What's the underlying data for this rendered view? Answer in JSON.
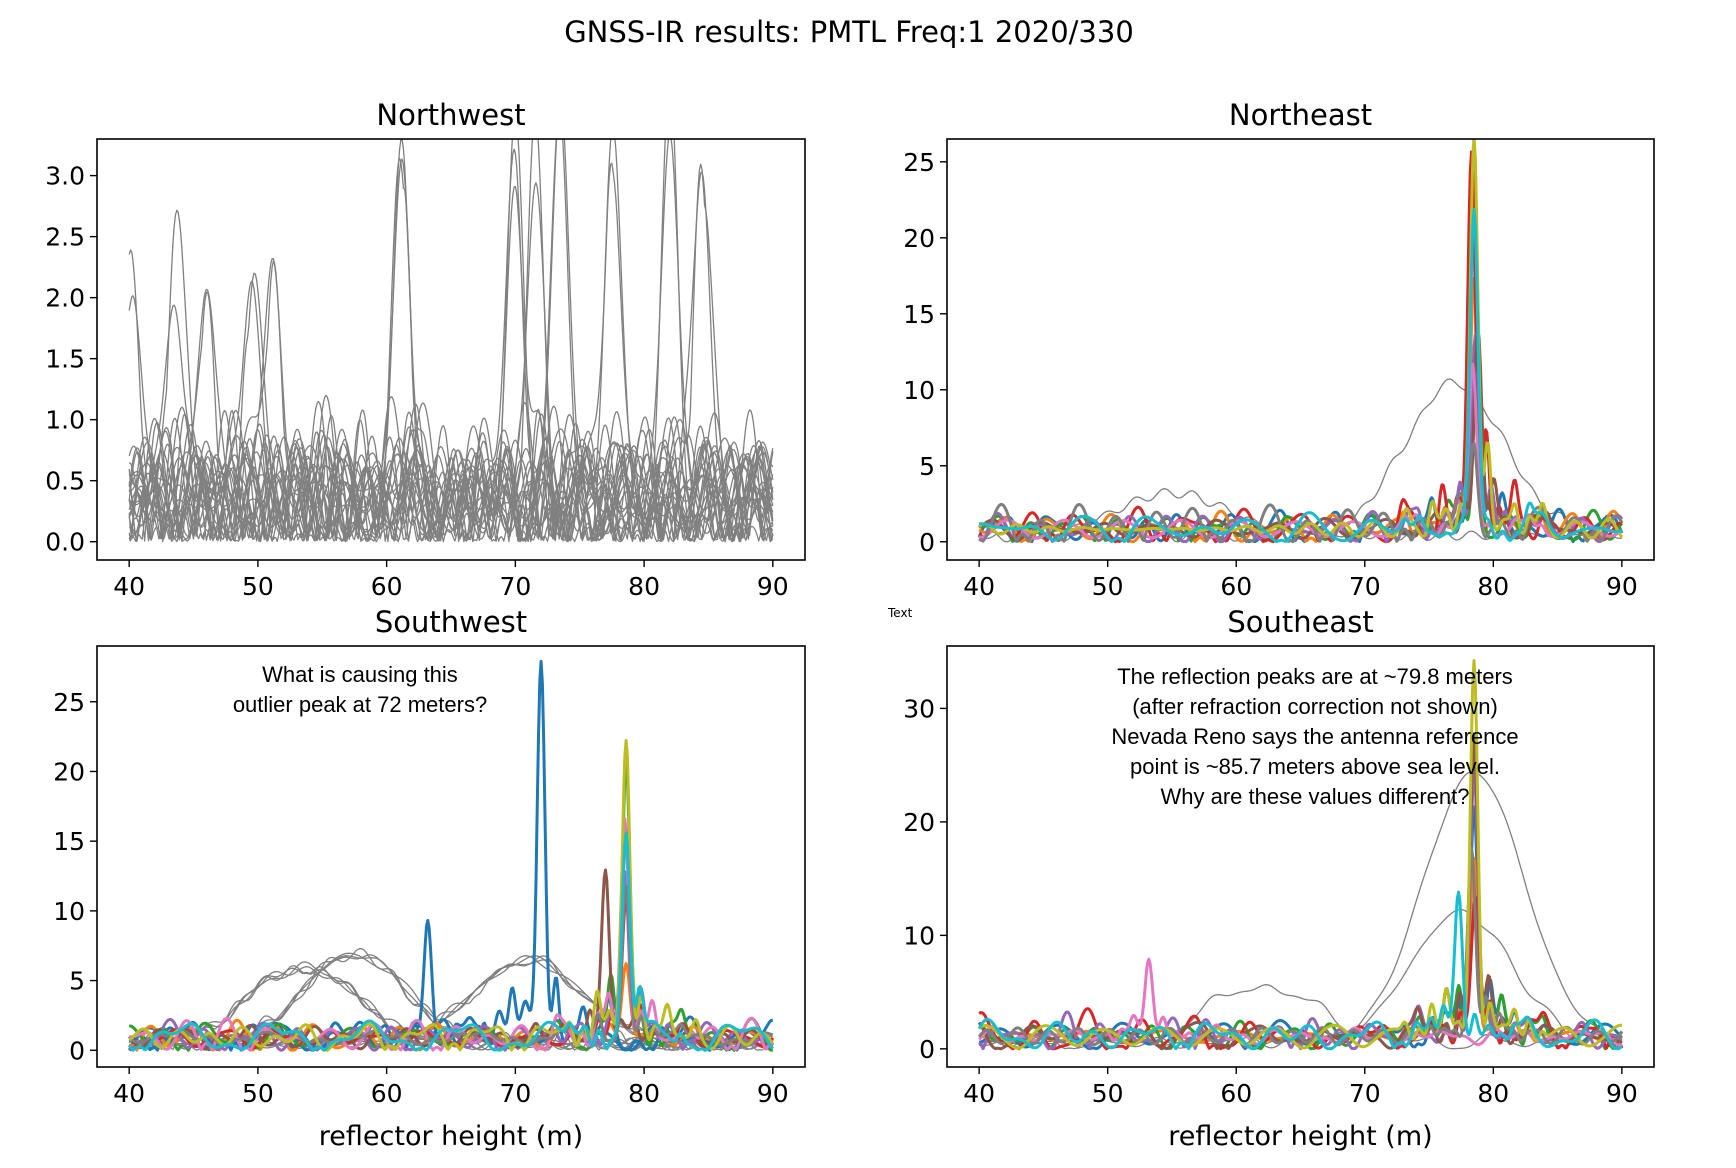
{
  "figure": {
    "title": "GNSS-IR results: PMTL Freq:1 2020/330",
    "stray_text": "Text"
  },
  "colors": {
    "gray": "#808080",
    "cycle": [
      "#1f77b4",
      "#ff7f0e",
      "#2ca02c",
      "#d62728",
      "#9467bd",
      "#8c564b",
      "#e377c2",
      "#7f7f7f",
      "#bcbd22",
      "#17becf"
    ]
  },
  "chart_data": [
    {
      "type": "line",
      "title": "Northwest",
      "xlabel": "",
      "ylabel": "",
      "xlim": [
        37.5,
        92.5
      ],
      "ylim": [
        -0.15,
        3.3
      ],
      "xticks": [
        40,
        50,
        60,
        70,
        80,
        90
      ],
      "yticks": [
        0.0,
        0.5,
        1.0,
        1.5,
        2.0,
        2.5,
        3.0
      ],
      "ytick_labels": [
        "0.0",
        "0.5",
        "1.0",
        "1.5",
        "2.0",
        "2.5",
        "3.0"
      ],
      "annotations": [],
      "gray_traces": {
        "count": 26,
        "peaks": [
          {
            "x": 61.2,
            "y": 2.92
          },
          {
            "x": 70.0,
            "y": 2.75
          },
          {
            "x": 73.5,
            "y": 3.15
          },
          {
            "x": 77.5,
            "y": 3.05
          },
          {
            "x": 82.0,
            "y": 3.05
          },
          {
            "x": 84.5,
            "y": 2.87
          },
          {
            "x": 71.5,
            "y": 2.45
          },
          {
            "x": 40.2,
            "y": 1.98
          },
          {
            "x": 43.5,
            "y": 1.9
          },
          {
            "x": 46.0,
            "y": 1.88
          },
          {
            "x": 51.2,
            "y": 2.1
          },
          {
            "x": 49.5,
            "y": 1.82
          }
        ]
      },
      "series": []
    },
    {
      "type": "line",
      "title": "Northeast",
      "xlabel": "",
      "ylabel": "",
      "xlim": [
        37.5,
        92.5
      ],
      "ylim": [
        -1.2,
        26.5
      ],
      "xticks": [
        40,
        50,
        60,
        70,
        80,
        90
      ],
      "yticks": [
        0,
        5,
        10,
        15,
        20,
        25
      ],
      "ytick_labels": [
        "0",
        "5",
        "10",
        "15",
        "20",
        "25"
      ],
      "annotations": [],
      "gray_traces": {
        "count": 2,
        "peaks": [
          {
            "x": 77.0,
            "y": 10.0
          },
          {
            "x": 55.0,
            "y": 2.8
          }
        ]
      },
      "series": [
        {
          "color_index": 0,
          "peak_x": 78.5,
          "peak_y": 24.0
        },
        {
          "color_index": 1,
          "peak_x": 78.5,
          "peak_y": 17.0
        },
        {
          "color_index": 2,
          "peak_x": 78.7,
          "peak_y": 9.5
        },
        {
          "color_index": 3,
          "peak_x": 78.3,
          "peak_y": 24.5
        },
        {
          "color_index": 4,
          "peak_x": 78.6,
          "peak_y": 13.0
        },
        {
          "color_index": 5,
          "peak_x": 78.8,
          "peak_y": 13.2
        },
        {
          "color_index": 6,
          "peak_x": 78.4,
          "peak_y": 10.5
        },
        {
          "color_index": 7,
          "peak_x": 78.5,
          "peak_y": 6.0
        },
        {
          "color_index": 8,
          "peak_x": 78.5,
          "peak_y": 25.3
        },
        {
          "color_index": 9,
          "peak_x": 78.5,
          "peak_y": 20.0
        }
      ]
    },
    {
      "type": "line",
      "title": "Southwest",
      "xlabel": "reflector height (m)",
      "ylabel": "",
      "xlim": [
        37.5,
        92.5
      ],
      "ylim": [
        -1.2,
        29.0
      ],
      "xticks": [
        40,
        50,
        60,
        70,
        80,
        90
      ],
      "yticks": [
        0,
        5,
        10,
        15,
        20,
        25
      ],
      "ytick_labels": [
        "0",
        "5",
        "10",
        "15",
        "20",
        "25"
      ],
      "annotations": [
        "What is causing this",
        "outlier peak at 72 meters?"
      ],
      "gray_traces": {
        "count": 12,
        "peaks": [
          {
            "x": 53.5,
            "y": 5.5
          },
          {
            "x": 57.5,
            "y": 6.5
          },
          {
            "x": 71.0,
            "y": 6.0
          }
        ]
      },
      "series": [
        {
          "color_index": 0,
          "peak_x": 72.0,
          "peak_y": 27.8
        },
        {
          "color_index": 0,
          "peak_x": 63.2,
          "peak_y": 8.5
        },
        {
          "color_index": 1,
          "peak_x": 78.6,
          "peak_y": 5.0
        },
        {
          "color_index": 2,
          "peak_x": 78.6,
          "peak_y": 19.5
        },
        {
          "color_index": 3,
          "peak_x": 78.6,
          "peak_y": 9.8
        },
        {
          "color_index": 4,
          "peak_x": 78.5,
          "peak_y": 12.0
        },
        {
          "color_index": 5,
          "peak_x": 77.0,
          "peak_y": 12.2
        },
        {
          "color_index": 6,
          "peak_x": 78.5,
          "peak_y": 16.5
        },
        {
          "color_index": 7,
          "peak_x": 78.6,
          "peak_y": 11.0
        },
        {
          "color_index": 8,
          "peak_x": 78.6,
          "peak_y": 21.0
        },
        {
          "color_index": 9,
          "peak_x": 78.6,
          "peak_y": 14.5
        }
      ]
    },
    {
      "type": "line",
      "title": "Southeast",
      "xlabel": "reflector height (m)",
      "ylabel": "",
      "xlim": [
        37.5,
        92.5
      ],
      "ylim": [
        -1.6,
        35.5
      ],
      "xticks": [
        40,
        50,
        60,
        70,
        80,
        90
      ],
      "yticks": [
        0,
        10,
        20,
        30
      ],
      "ytick_labels": [
        "0",
        "10",
        "20",
        "30"
      ],
      "annotations": [
        "The reflection peaks are at ~79.8 meters",
        "(after refraction correction not shown)",
        "Nevada Reno says the antenna reference",
        "point is ~85.7 meters above sea level.",
        "Why are these values different?"
      ],
      "gray_traces": {
        "count": 3,
        "peaks": [
          {
            "x": 78.5,
            "y": 23.8
          },
          {
            "x": 77.5,
            "y": 11.5
          },
          {
            "x": 62.0,
            "y": 5.0
          }
        ]
      },
      "series": [
        {
          "color_index": 0,
          "peak_x": 78.5,
          "peak_y": 21.0
        },
        {
          "color_index": 1,
          "peak_x": 78.5,
          "peak_y": 16.0
        },
        {
          "color_index": 2,
          "peak_x": 78.5,
          "peak_y": 25.0
        },
        {
          "color_index": 3,
          "peak_x": 78.6,
          "peak_y": 11.5
        },
        {
          "color_index": 4,
          "peak_x": 78.5,
          "peak_y": 22.0
        },
        {
          "color_index": 5,
          "peak_x": 78.5,
          "peak_y": 26.0
        },
        {
          "color_index": 6,
          "peak_x": 53.2,
          "peak_y": 7.0
        },
        {
          "color_index": 7,
          "peak_x": 78.3,
          "peak_y": 16.0
        },
        {
          "color_index": 8,
          "peak_x": 78.5,
          "peak_y": 34.0
        },
        {
          "color_index": 9,
          "peak_x": 77.3,
          "peak_y": 12.5
        }
      ]
    }
  ]
}
